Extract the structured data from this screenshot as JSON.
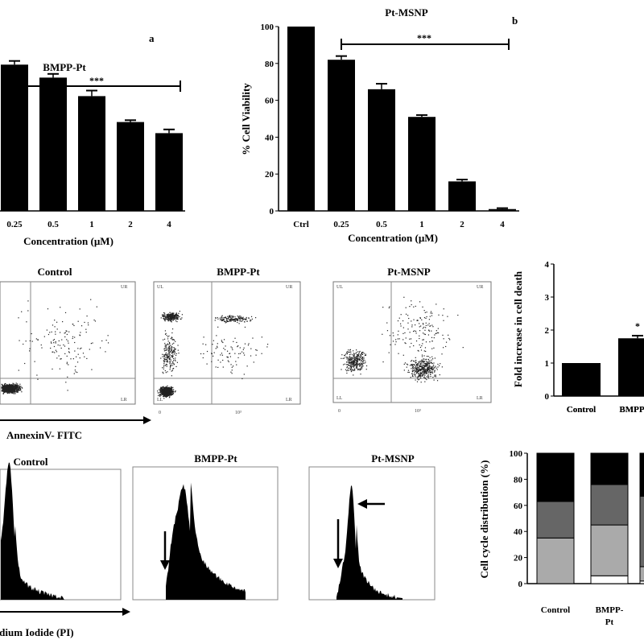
{
  "panel_a": {
    "letter": "a",
    "title": "BMPP-Pt",
    "significance": "***",
    "xlabel": "Concentration (µM)"
  },
  "panel_b": {
    "letter": "b",
    "title": "Pt-MSNP",
    "significance": "***",
    "ylabel": "% Cell Viability",
    "xlabel": "Concentration (µM)"
  },
  "flow": {
    "titles": [
      "Control",
      "BMPP-Pt",
      "Pt-MSNP"
    ],
    "xlabel": "AnnexinV- FITC",
    "quadrant_labels": [
      "UL",
      "UR",
      "LL",
      "LR"
    ],
    "x_tick_labels": [
      "0",
      "10³"
    ]
  },
  "fold": {
    "ylabel": "Fold increase in cell death",
    "significance": "*"
  },
  "histo": {
    "titles": [
      "Control",
      "BMPP-Pt",
      "Pt-MSNP"
    ],
    "xlabel": "Propidium Iodide (PI)"
  },
  "cycle": {
    "ylabel": "Cell cycle distribution (%)"
  },
  "colors": {
    "bar": "#000000",
    "cycle_segments": [
      "#ffffff",
      "#aaaaaa",
      "#666666",
      "#000000"
    ]
  },
  "chart_data": [
    {
      "type": "bar",
      "title": "BMPP-Pt",
      "xlabel": "Concentration (µM)",
      "categories": [
        "0.25",
        "0.5",
        "1",
        "2",
        "4"
      ],
      "values": [
        79,
        72,
        62,
        48,
        42
      ],
      "errors": [
        2,
        2,
        3,
        1,
        2
      ],
      "ylim": [
        0,
        100
      ]
    },
    {
      "type": "bar",
      "title": "Pt-MSNP",
      "xlabel": "Concentration (µM)",
      "ylabel": "% Cell Viability",
      "categories": [
        "Ctrl",
        "0.25",
        "0.5",
        "1",
        "2",
        "4"
      ],
      "values": [
        100,
        82,
        66,
        51,
        16,
        1
      ],
      "errors": [
        0,
        2,
        3,
        1,
        1,
        0.5
      ],
      "ylim": [
        0,
        100
      ],
      "yticks": [
        "0",
        "20",
        "40",
        "60",
        "80",
        "100"
      ]
    },
    {
      "type": "bar",
      "ylabel": "Fold increase in cell death",
      "categories": [
        "Control",
        "BMPP-Pt"
      ],
      "values": [
        1.0,
        1.75
      ],
      "errors": [
        0,
        0.08
      ],
      "ylim": [
        0,
        4
      ],
      "yticks": [
        "0",
        "1",
        "2",
        "3",
        "4"
      ]
    },
    {
      "type": "bar",
      "ylabel": "Cell cycle distribution (%)",
      "stacked": true,
      "categories": [
        "Control",
        "BMPP-Pt",
        ""
      ],
      "category_labels": [
        "Control",
        "BMPP-\nPt",
        ""
      ],
      "series": [
        {
          "values": [
            0,
            6,
            2
          ]
        },
        {
          "values": [
            35,
            39,
            11
          ]
        },
        {
          "values": [
            28,
            31,
            54
          ]
        },
        {
          "values": [
            37,
            24,
            33
          ]
        }
      ],
      "ylim": [
        0,
        100
      ],
      "yticks": [
        "0",
        "20",
        "40",
        "60",
        "80",
        "100"
      ]
    }
  ]
}
